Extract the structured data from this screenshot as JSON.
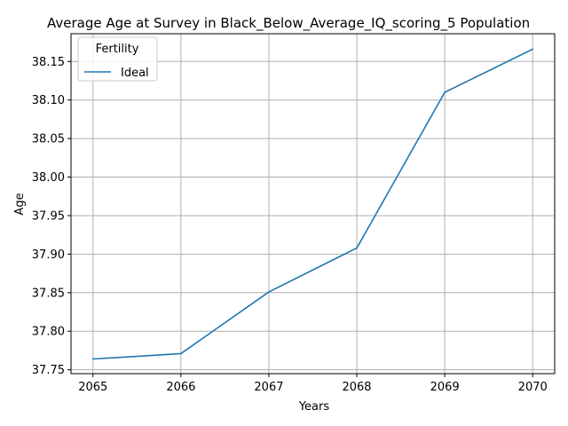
{
  "chart_data": {
    "type": "line",
    "title": "Average Age at Survey in Black_Below_Average_IQ_scoring_5 Population",
    "xlabel": "Years",
    "ylabel": "Age",
    "x": [
      2065,
      2066,
      2067,
      2068,
      2069,
      2070
    ],
    "series": [
      {
        "name": "Ideal",
        "color": "#1f77b4",
        "values": [
          37.764,
          37.771,
          37.851,
          37.908,
          38.11,
          38.166
        ]
      }
    ],
    "xlim": [
      2064.75,
      2070.25
    ],
    "ylim": [
      37.745,
      38.186
    ],
    "xticks": [
      "2065",
      "2066",
      "2067",
      "2068",
      "2069",
      "2070"
    ],
    "yticks": [
      "37.75",
      "37.80",
      "37.85",
      "37.90",
      "37.95",
      "38.00",
      "38.05",
      "38.10",
      "38.15"
    ],
    "grid": true,
    "legend": {
      "title": "Fertility",
      "placement": "upper-left"
    }
  }
}
